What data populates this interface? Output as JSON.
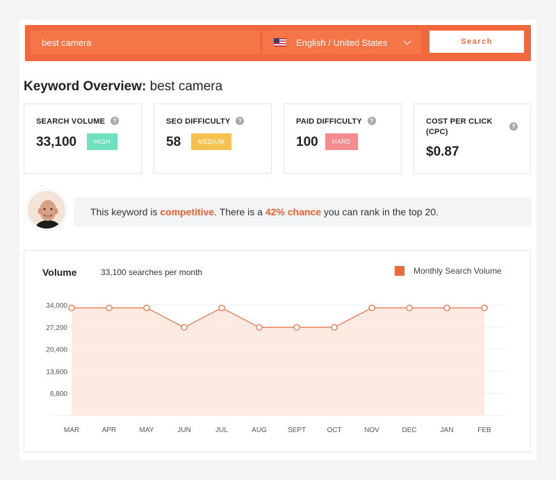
{
  "search": {
    "keyword_value": "best camera",
    "language_label": "English / United States",
    "button_label": "Search"
  },
  "overview": {
    "title_prefix": "Keyword Overview:",
    "keyword": "best camera"
  },
  "metrics": [
    {
      "label": "SEARCH VOLUME",
      "value": "33,100",
      "badge": "HIGH",
      "badge_color": "#6fe0c0"
    },
    {
      "label": "SEO DIFFICULTY",
      "value": "58",
      "badge": "MEDIUM",
      "badge_color": "#f6c14f"
    },
    {
      "label": "PAID DIFFICULTY",
      "value": "100",
      "badge": "HARD",
      "badge_color": "#f48b8e"
    },
    {
      "label": "COST PER CLICK (CPC)",
      "value": "$0.87"
    }
  ],
  "insight": {
    "part1": "This keyword is ",
    "highlight1": "competitive",
    "part2": ". There is a ",
    "highlight2": "42% chance",
    "part3": " you can rank in the top 20."
  },
  "colors": {
    "accent": "#f0683b",
    "highlight": "#e9602f",
    "area_fill": "#fde6dc",
    "line": "#e8845f"
  },
  "chart_data": {
    "type": "area",
    "title": "Volume",
    "subtitle": "33,100 searches per month",
    "legend": "Monthly Search Volume",
    "legend_position": "top-right",
    "categories": [
      "MAR",
      "APR",
      "MAY",
      "JUN",
      "JUL",
      "AUG",
      "SEPT",
      "OCT",
      "NOV",
      "DEC",
      "JAN",
      "FEB"
    ],
    "series": [
      {
        "name": "Monthly Search Volume",
        "values": [
          33100,
          33100,
          33100,
          27100,
          33100,
          27100,
          27100,
          27100,
          33100,
          33100,
          33100,
          33100
        ]
      }
    ],
    "y_ticks": [
      "34,000",
      "27,200",
      "20,400",
      "13,600",
      "6,800"
    ],
    "y_tick_values": [
      34000,
      27200,
      20400,
      13600,
      6800
    ],
    "ylim": [
      0,
      34000
    ],
    "grid": true
  }
}
